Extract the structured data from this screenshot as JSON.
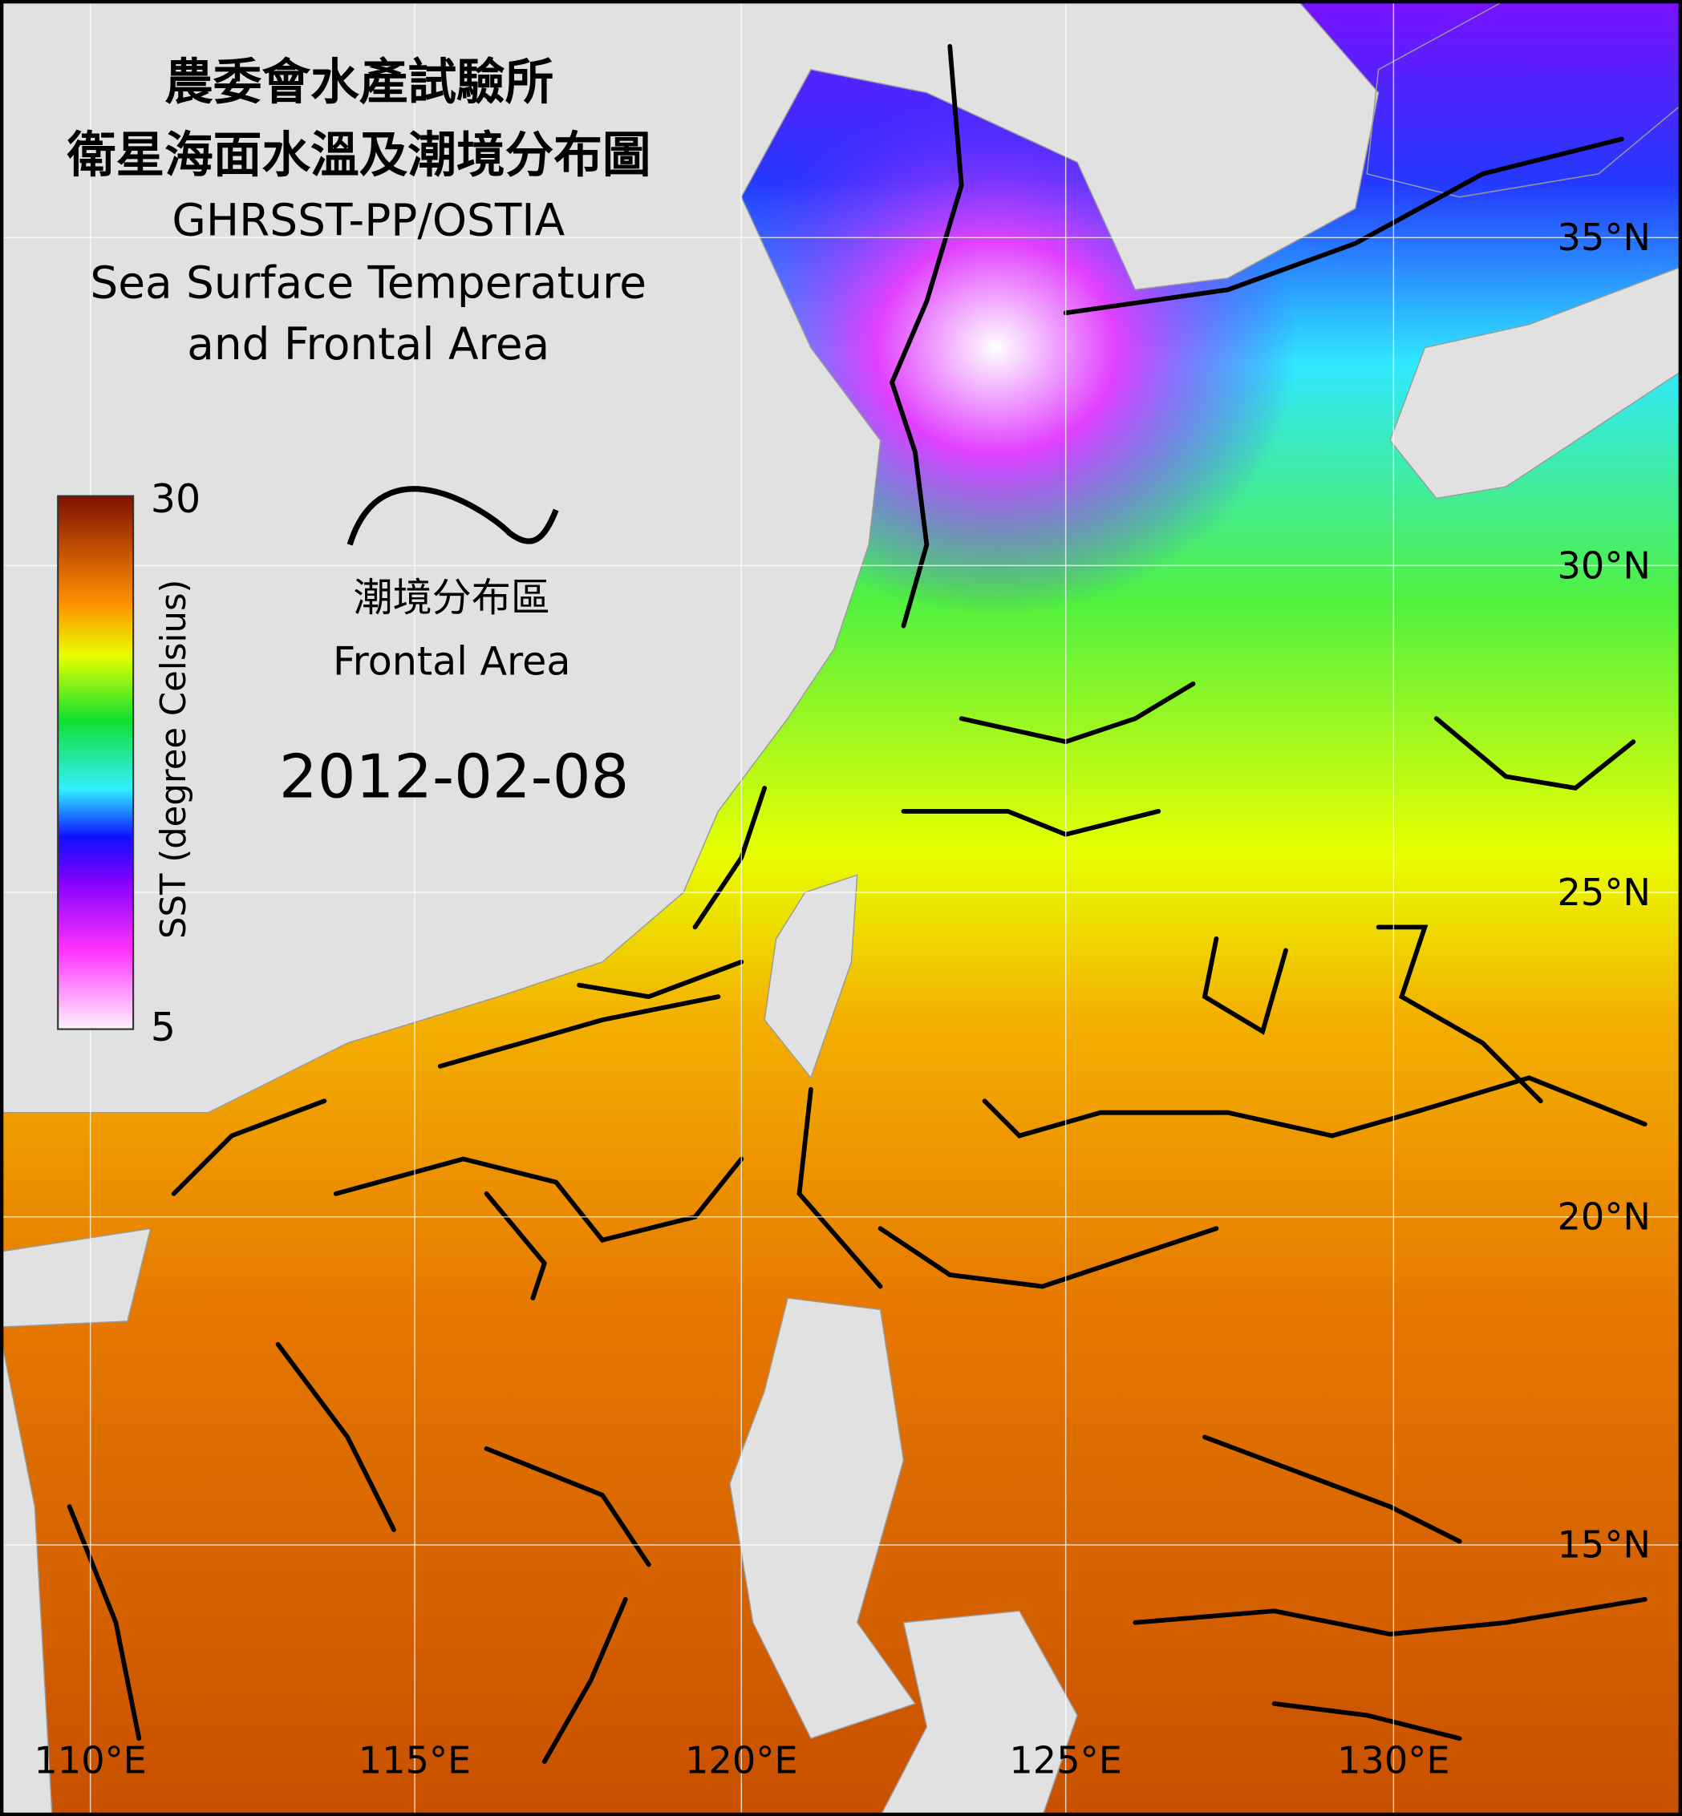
{
  "header": {
    "title_lines": [
      "農委會水產試驗所",
      "衛星海面水溫及潮境分布圖",
      "GHRSST-PP/OSTIA",
      "Sea Surface Temperature",
      "and Frontal Area"
    ]
  },
  "colorbar": {
    "label": "SST (degree Celsius)",
    "max_label": "30",
    "min_label": "5"
  },
  "legend": {
    "label_zh": "潮境分布區",
    "label_en": "Frontal Area"
  },
  "date": "2012-02-08",
  "lat_labels": [
    "35°N",
    "30°N",
    "25°N",
    "20°N",
    "15°N"
  ],
  "lon_labels": [
    "110°E",
    "115°E",
    "120°E",
    "125°E",
    "130°E"
  ]
}
